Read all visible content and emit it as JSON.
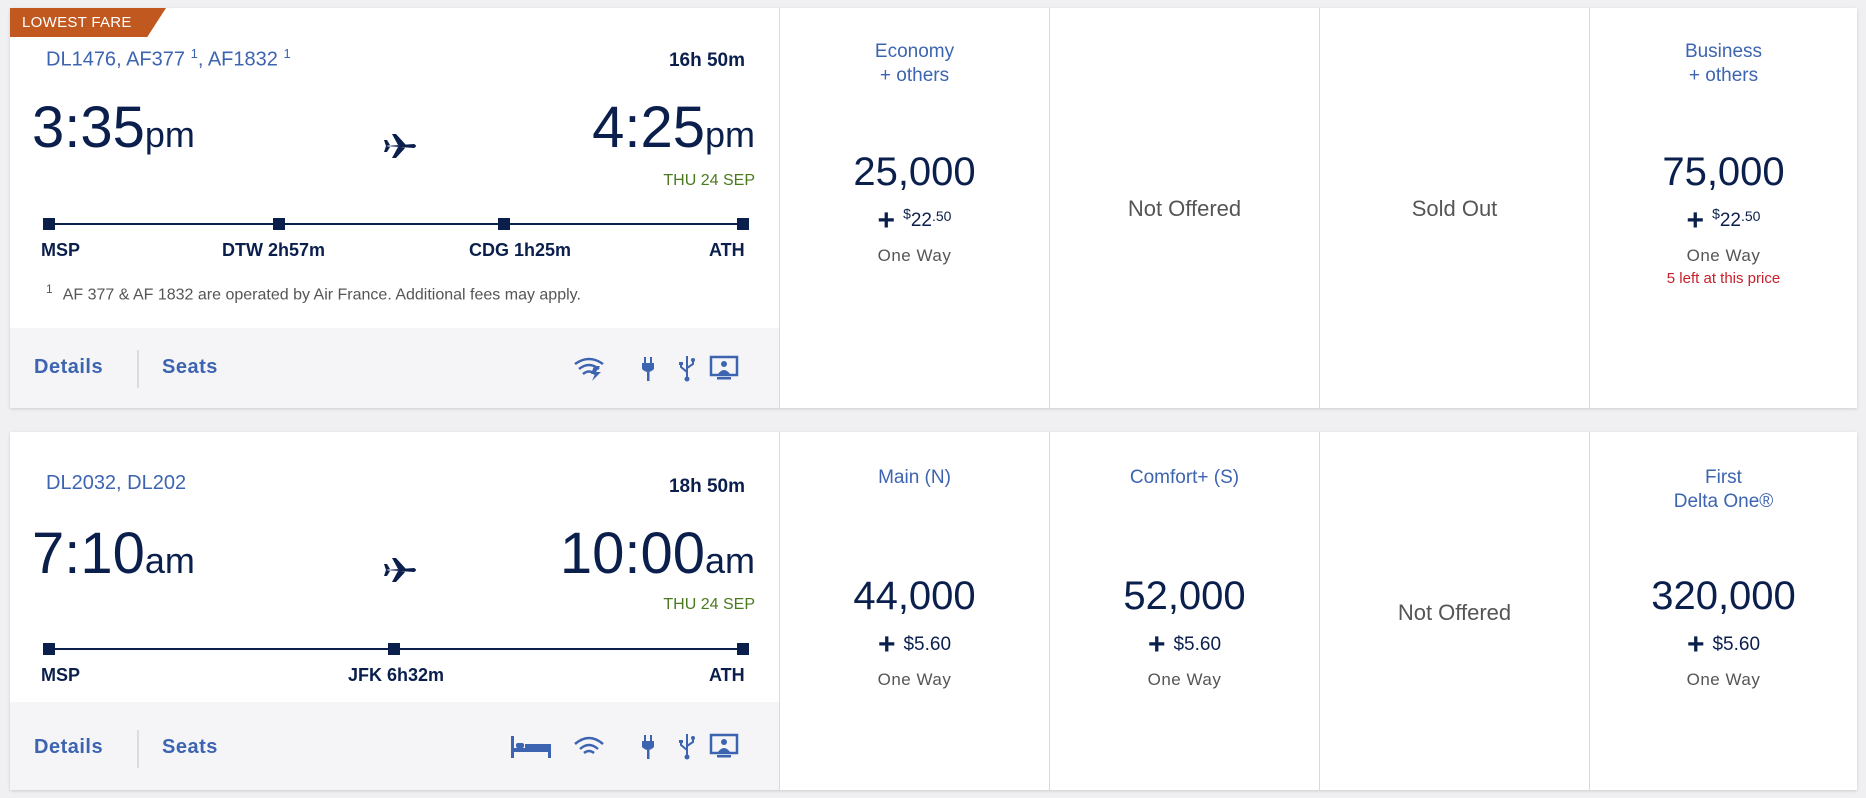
{
  "flights": [
    {
      "badge": "LOWEST FARE",
      "flight_numbers": {
        "a": "DL1476",
        "b": "AF377",
        "b_sup": "1",
        "c": "AF1832",
        "c_sup": "1",
        "sep": ", "
      },
      "duration": "16h 50m",
      "depart": {
        "time": "3:35",
        "ampm": "pm"
      },
      "arrive": {
        "time": "4:25",
        "ampm": "pm"
      },
      "arrive_date": "THU 24 SEP",
      "stops": [
        "MSP",
        "DTW 2h57m",
        "CDG 1h25m",
        "ATH"
      ],
      "footnote": {
        "mark": "1",
        "text": "AF 377 & AF 1832 are operated by Air France. Additional fees may apply."
      },
      "details_label": "Details",
      "seats_label": "Seats",
      "amenities": [
        "wifi-icon",
        "power-outlet-icon",
        "usb-icon",
        "seatback-screen-icon"
      ],
      "fares": [
        {
          "title": "Economy\n+ others",
          "miles": "25,000",
          "fee_sym": "$",
          "fee_whole": "22",
          "fee_cents": ".50",
          "way": "One Way",
          "left": ""
        },
        {
          "status": "Not Offered"
        },
        {
          "status": "Sold Out"
        },
        {
          "title": "Business\n+ others",
          "miles": "75,000",
          "fee_sym": "$",
          "fee_whole": "22",
          "fee_cents": ".50",
          "way": "One Way",
          "left": "5 left at this price"
        }
      ]
    },
    {
      "flight_numbers": {
        "text": "DL2032, DL202"
      },
      "duration": "18h 50m",
      "depart": {
        "time": "7:10",
        "ampm": "am"
      },
      "arrive": {
        "time": "10:00",
        "ampm": "am"
      },
      "arrive_date": "THU 24 SEP",
      "stops": [
        "MSP",
        "JFK 6h32m",
        "ATH"
      ],
      "details_label": "Details",
      "seats_label": "Seats",
      "amenities": [
        "flat-bed-icon",
        "wifi-icon",
        "power-outlet-icon",
        "usb-icon",
        "seatback-screen-icon"
      ],
      "fares": [
        {
          "title": "Main (N)",
          "miles": "44,000",
          "fee": "$5.60",
          "way": "One Way"
        },
        {
          "title": "Comfort+ (S)",
          "miles": "52,000",
          "fee": "$5.60",
          "way": "One Way"
        },
        {
          "status": "Not Offered"
        },
        {
          "title": "First\nDelta One®",
          "miles": "320,000",
          "fee": "$5.60",
          "way": "One Way"
        }
      ]
    }
  ],
  "colors": {
    "navy": "#0b1f4d",
    "link_blue": "#3d64b0",
    "badge_orange": "#c0581f",
    "date_green": "#4b7a1e",
    "alert_red": "#c8202a"
  }
}
